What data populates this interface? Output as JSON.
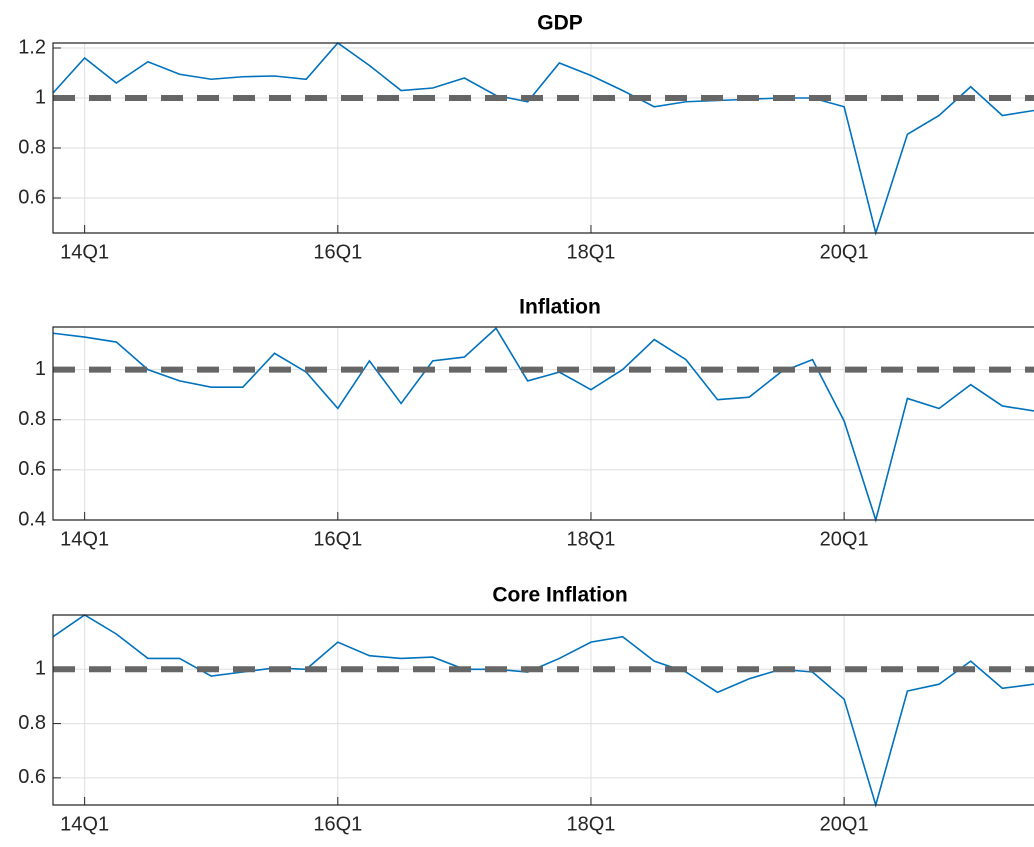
{
  "chart_data": [
    {
      "type": "line",
      "title": "GDP",
      "categories": [
        null,
        "14Q1",
        null,
        null,
        null,
        null,
        null,
        null,
        null,
        "16Q1",
        null,
        null,
        null,
        null,
        null,
        null,
        null,
        "18Q1",
        null,
        null,
        null,
        null,
        null,
        null,
        null,
        "20Q1",
        null,
        null,
        null,
        null,
        null,
        null
      ],
      "values": [
        1.02,
        1.16,
        1.06,
        1.145,
        1.095,
        1.075,
        1.085,
        1.088,
        1.075,
        1.22,
        1.13,
        1.03,
        1.04,
        1.08,
        1.01,
        0.985,
        1.14,
        1.09,
        1.03,
        0.965,
        0.985,
        0.99,
        0.995,
        1.0,
        1.0,
        0.965,
        0.46,
        0.855,
        0.93,
        1.045,
        0.93,
        0.95
      ],
      "color": "#0072bd",
      "hline": 1,
      "hline_color": "#666666",
      "ylim": [
        0.46,
        1.22
      ],
      "yticks": [
        0.6,
        0.8,
        1,
        1.2
      ],
      "grid": true
    },
    {
      "type": "line",
      "title": "Inflation",
      "categories": [
        null,
        "14Q1",
        null,
        null,
        null,
        null,
        null,
        null,
        null,
        "16Q1",
        null,
        null,
        null,
        null,
        null,
        null,
        null,
        "18Q1",
        null,
        null,
        null,
        null,
        null,
        null,
        null,
        "20Q1",
        null,
        null,
        null,
        null,
        null,
        null
      ],
      "values": [
        1.145,
        1.13,
        1.11,
        1.0,
        0.955,
        0.93,
        0.93,
        1.065,
        0.99,
        0.845,
        1.035,
        0.865,
        1.035,
        1.05,
        1.165,
        0.955,
        0.99,
        0.92,
        1.0,
        1.12,
        1.04,
        0.88,
        0.89,
        0.99,
        1.04,
        0.795,
        0.4,
        0.885,
        0.845,
        0.94,
        0.855,
        0.835
      ],
      "color": "#0072bd",
      "hline": 1,
      "hline_color": "#666666",
      "ylim": [
        0.4,
        1.17
      ],
      "yticks": [
        0.4,
        0.6,
        0.8,
        1
      ],
      "grid": true
    },
    {
      "type": "line",
      "title": "Core Inflation",
      "categories": [
        null,
        "14Q1",
        null,
        null,
        null,
        null,
        null,
        null,
        null,
        "16Q1",
        null,
        null,
        null,
        null,
        null,
        null,
        null,
        "18Q1",
        null,
        null,
        null,
        null,
        null,
        null,
        null,
        "20Q1",
        null,
        null,
        null,
        null,
        null,
        null
      ],
      "values": [
        1.12,
        1.2,
        1.13,
        1.04,
        1.04,
        0.975,
        0.99,
        1.005,
        1.0,
        1.1,
        1.05,
        1.04,
        1.045,
        1.0,
        1.0,
        0.99,
        1.04,
        1.1,
        1.12,
        1.03,
        0.99,
        0.915,
        0.965,
        1.0,
        0.99,
        0.89,
        0.5,
        0.92,
        0.945,
        1.03,
        0.93,
        0.945
      ],
      "color": "#0072bd",
      "hline": 1,
      "hline_color": "#666666",
      "ylim": [
        0.5,
        1.2
      ],
      "yticks": [
        0.6,
        0.8,
        1
      ],
      "grid": true
    }
  ]
}
